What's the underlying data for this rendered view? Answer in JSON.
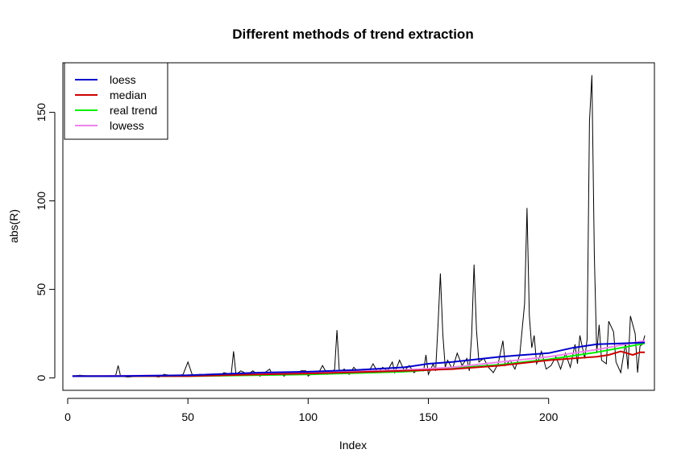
{
  "chart_data": {
    "type": "line",
    "title": "Different methods of trend extraction",
    "xlabel": "Index",
    "ylabel": "abs(R)",
    "xlim": [
      -2,
      244
    ],
    "ylim": [
      -7,
      178
    ],
    "x_ticks": [
      0,
      50,
      100,
      150,
      200
    ],
    "y_ticks": [
      0,
      50,
      100,
      150
    ],
    "grid": false,
    "legend_position": "top-left",
    "legend": [
      {
        "label": "loess",
        "color": "#0000cc"
      },
      {
        "label": "median",
        "color": "#cc0000"
      },
      {
        "label": "real trend",
        "color": "#00ee00"
      },
      {
        "label": "lowess",
        "color": "#ee82ee"
      }
    ],
    "raw_series": {
      "color": "#000000",
      "points": [
        [
          2,
          1
        ],
        [
          5,
          1.5
        ],
        [
          10,
          1
        ],
        [
          15,
          1
        ],
        [
          20,
          1.5
        ],
        [
          21,
          7
        ],
        [
          22,
          1
        ],
        [
          25,
          0.5
        ],
        [
          30,
          1
        ],
        [
          35,
          1
        ],
        [
          38,
          0.5
        ],
        [
          40,
          2
        ],
        [
          45,
          1
        ],
        [
          48,
          2
        ],
        [
          50,
          9
        ],
        [
          52,
          1
        ],
        [
          55,
          2
        ],
        [
          58,
          1
        ],
        [
          60,
          2
        ],
        [
          63,
          1
        ],
        [
          65,
          3
        ],
        [
          68,
          2
        ],
        [
          69,
          15
        ],
        [
          70,
          2
        ],
        [
          72,
          4
        ],
        [
          75,
          2
        ],
        [
          77,
          4
        ],
        [
          80,
          1
        ],
        [
          82,
          3
        ],
        [
          84,
          5
        ],
        [
          85,
          2
        ],
        [
          88,
          3
        ],
        [
          90,
          1
        ],
        [
          92,
          3
        ],
        [
          95,
          2
        ],
        [
          97,
          4
        ],
        [
          99,
          4
        ],
        [
          100,
          1
        ],
        [
          102,
          3
        ],
        [
          104,
          2
        ],
        [
          106,
          7
        ],
        [
          108,
          2
        ],
        [
          110,
          3
        ],
        [
          111,
          5
        ],
        [
          112,
          27
        ],
        [
          113,
          3
        ],
        [
          115,
          5
        ],
        [
          117,
          2
        ],
        [
          119,
          6
        ],
        [
          121,
          3
        ],
        [
          123,
          5
        ],
        [
          125,
          3
        ],
        [
          127,
          8
        ],
        [
          129,
          3
        ],
        [
          131,
          6
        ],
        [
          133,
          4
        ],
        [
          135,
          9
        ],
        [
          136,
          3
        ],
        [
          138,
          10
        ],
        [
          140,
          4
        ],
        [
          142,
          7
        ],
        [
          144,
          3
        ],
        [
          146,
          5
        ],
        [
          148,
          4
        ],
        [
          149,
          13
        ],
        [
          150,
          2
        ],
        [
          152,
          8
        ],
        [
          153,
          4
        ],
        [
          154,
          30
        ],
        [
          155,
          59
        ],
        [
          156,
          25
        ],
        [
          157,
          6
        ],
        [
          158,
          10
        ],
        [
          160,
          5
        ],
        [
          162,
          14
        ],
        [
          164,
          7
        ],
        [
          166,
          11
        ],
        [
          167,
          4
        ],
        [
          168,
          24
        ],
        [
          169,
          64
        ],
        [
          170,
          27
        ],
        [
          171,
          9
        ],
        [
          173,
          11
        ],
        [
          175,
          6
        ],
        [
          177,
          3
        ],
        [
          179,
          8
        ],
        [
          181,
          21
        ],
        [
          182,
          7
        ],
        [
          184,
          10
        ],
        [
          186,
          5
        ],
        [
          188,
          13
        ],
        [
          190,
          42
        ],
        [
          191,
          96
        ],
        [
          192,
          35
        ],
        [
          193,
          17
        ],
        [
          194,
          24
        ],
        [
          195,
          8
        ],
        [
          196,
          11
        ],
        [
          197,
          15
        ],
        [
          199,
          5
        ],
        [
          201,
          7
        ],
        [
          203,
          12
        ],
        [
          205,
          5
        ],
        [
          207,
          14
        ],
        [
          209,
          6
        ],
        [
          211,
          19
        ],
        [
          212,
          8
        ],
        [
          213,
          24
        ],
        [
          215,
          11
        ],
        [
          216,
          22
        ],
        [
          217,
          145
        ],
        [
          218,
          171
        ],
        [
          219,
          70
        ],
        [
          220,
          14
        ],
        [
          221,
          30
        ],
        [
          222,
          10
        ],
        [
          224,
          8
        ],
        [
          225,
          32
        ],
        [
          227,
          26
        ],
        [
          228,
          9
        ],
        [
          230,
          3
        ],
        [
          232,
          20
        ],
        [
          233,
          5
        ],
        [
          234,
          35
        ],
        [
          236,
          25
        ],
        [
          237,
          3
        ],
        [
          238,
          18
        ],
        [
          239,
          19
        ],
        [
          240,
          24
        ]
      ]
    },
    "series": [
      {
        "name": "real trend",
        "color": "#00ee00",
        "width": 2,
        "x": [
          2,
          50,
          100,
          140,
          160,
          180,
          200,
          220,
          240
        ],
        "values": [
          1,
          1,
          2,
          3.5,
          5.5,
          7.5,
          10.5,
          14.5,
          19.5
        ]
      },
      {
        "name": "lowess",
        "color": "#ee82ee",
        "width": 2,
        "x": [
          2,
          50,
          100,
          140,
          160,
          180,
          200,
          220,
          240
        ],
        "values": [
          1,
          1.5,
          3,
          4.5,
          6,
          9,
          12,
          16,
          21
        ]
      },
      {
        "name": "median",
        "color": "#cc0000",
        "width": 2,
        "x": [
          2,
          50,
          80,
          100,
          140,
          160,
          180,
          190,
          200,
          210,
          220,
          225,
          230,
          235,
          238,
          240
        ],
        "values": [
          1,
          1,
          2,
          2.5,
          4,
          5,
          7,
          8.5,
          10,
          11,
          12,
          13,
          15,
          13,
          14.5,
          14.5
        ]
      },
      {
        "name": "loess",
        "color": "#0000cc",
        "width": 2,
        "x": [
          2,
          20,
          50,
          80,
          100,
          120,
          140,
          150,
          160,
          180,
          200,
          210,
          220,
          230,
          240
        ],
        "values": [
          1,
          1,
          1.5,
          3,
          3.5,
          4.5,
          6,
          8,
          9,
          12,
          14,
          17,
          19,
          19.5,
          20
        ]
      }
    ]
  }
}
